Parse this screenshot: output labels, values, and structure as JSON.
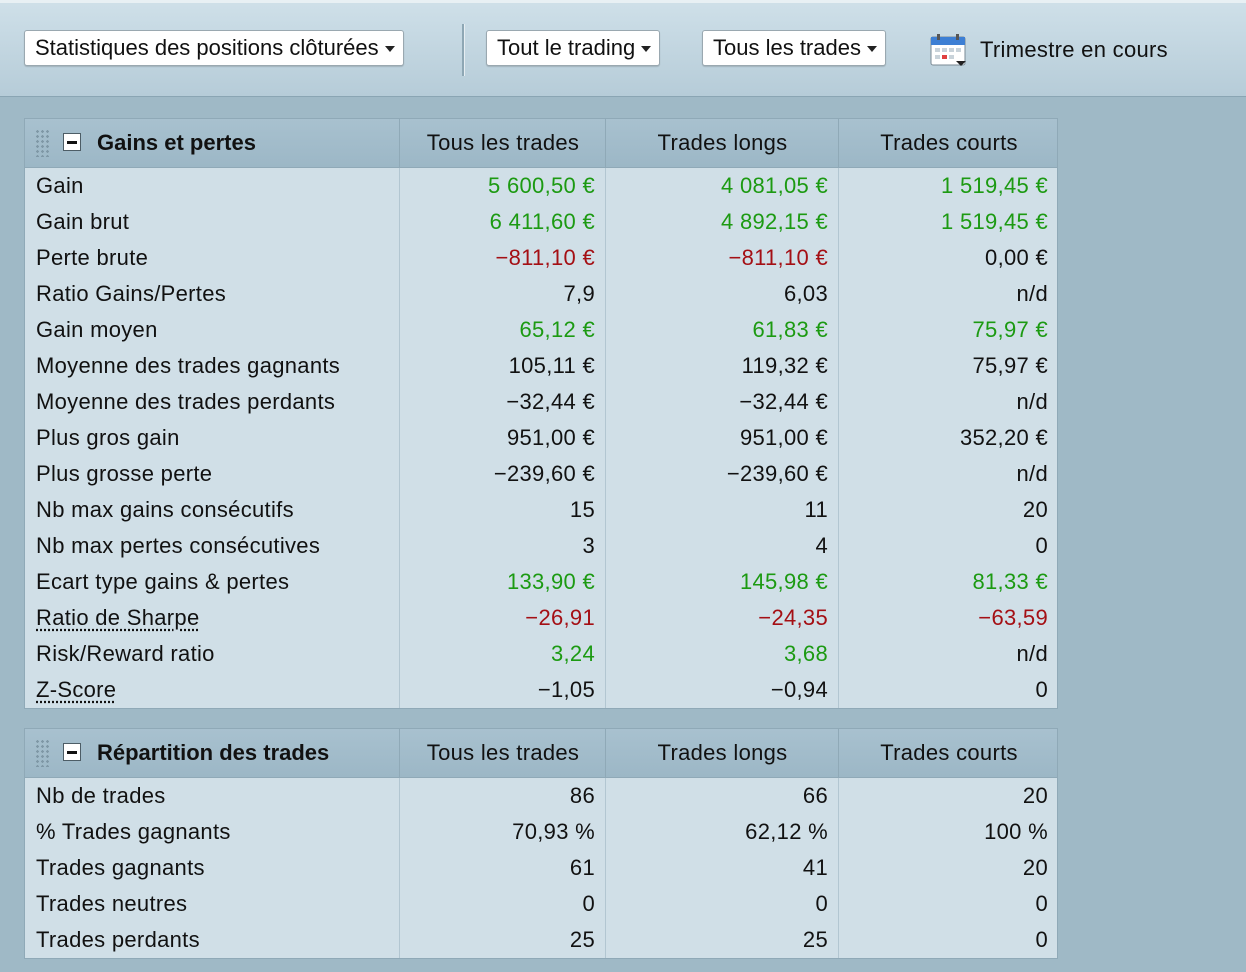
{
  "toolbar": {
    "view_select": "Statistiques des positions clôturées",
    "scope_select": "Tout le trading",
    "trades_select": "Tous les trades",
    "calendar_icon": "calendar-icon",
    "period_label": "Trimestre en cours"
  },
  "colors": {
    "positive": "#1c9a12",
    "negative": "#a40f14",
    "panel_bg": "#d0dfe7",
    "header_bg": "#a8c1cf"
  },
  "gains_panel": {
    "title": "Gains et pertes",
    "columns": [
      "Tous les trades",
      "Trades longs",
      "Trades courts"
    ],
    "rows": [
      {
        "label": "Gain",
        "values": [
          "5 600,50 €",
          "4 081,05 €",
          "1 519,45 €"
        ],
        "colors": [
          "green",
          "green",
          "green"
        ]
      },
      {
        "label": "Gain brut",
        "values": [
          "6 411,60 €",
          "4 892,15 €",
          "1 519,45 €"
        ],
        "colors": [
          "green",
          "green",
          "green"
        ]
      },
      {
        "label": "Perte brute",
        "values": [
          "−811,10 €",
          "−811,10 €",
          "0,00 €"
        ],
        "colors": [
          "red",
          "red",
          ""
        ]
      },
      {
        "label": "Ratio Gains/Pertes",
        "values": [
          "7,9",
          "6,03",
          "n/d"
        ],
        "colors": [
          "",
          "",
          ""
        ]
      },
      {
        "label": "Gain moyen",
        "values": [
          "65,12 €",
          "61,83 €",
          "75,97 €"
        ],
        "colors": [
          "green",
          "green",
          "green"
        ]
      },
      {
        "label": "Moyenne des trades gagnants",
        "values": [
          "105,11 €",
          "119,32 €",
          "75,97 €"
        ],
        "colors": [
          "",
          "",
          ""
        ]
      },
      {
        "label": "Moyenne des trades perdants",
        "values": [
          "−32,44 €",
          "−32,44 €",
          "n/d"
        ],
        "colors": [
          "",
          "",
          ""
        ]
      },
      {
        "label": "Plus gros gain",
        "values": [
          "951,00 €",
          "951,00 €",
          "352,20 €"
        ],
        "colors": [
          "",
          "",
          ""
        ]
      },
      {
        "label": "Plus grosse perte",
        "values": [
          "−239,60 €",
          "−239,60 €",
          "n/d"
        ],
        "colors": [
          "",
          "",
          ""
        ]
      },
      {
        "label": "Nb max gains consécutifs",
        "values": [
          "15",
          "11",
          "20"
        ],
        "colors": [
          "",
          "",
          ""
        ]
      },
      {
        "label": "Nb max pertes consécutives",
        "values": [
          "3",
          "4",
          "0"
        ],
        "colors": [
          "",
          "",
          ""
        ]
      },
      {
        "label": "Ecart type gains & pertes",
        "values": [
          "133,90 €",
          "145,98 €",
          "81,33 €"
        ],
        "colors": [
          "green",
          "green",
          "green"
        ]
      },
      {
        "label": "Ratio de Sharpe",
        "values": [
          "−26,91",
          "−24,35",
          "−63,59"
        ],
        "colors": [
          "red",
          "red",
          "red"
        ],
        "link": true
      },
      {
        "label": "Risk/Reward ratio",
        "values": [
          "3,24",
          "3,68",
          "n/d"
        ],
        "colors": [
          "green",
          "green",
          ""
        ]
      },
      {
        "label": "Z-Score",
        "values": [
          "−1,05",
          "−0,94",
          "0"
        ],
        "colors": [
          "",
          "",
          ""
        ],
        "link": true
      }
    ]
  },
  "distribution_panel": {
    "title": "Répartition des trades",
    "columns": [
      "Tous les trades",
      "Trades longs",
      "Trades courts"
    ],
    "rows": [
      {
        "label": "Nb de trades",
        "values": [
          "86",
          "66",
          "20"
        ],
        "colors": [
          "",
          "",
          ""
        ]
      },
      {
        "label": "% Trades gagnants",
        "values": [
          "70,93 %",
          "62,12 %",
          "100 %"
        ],
        "colors": [
          "",
          "",
          ""
        ]
      },
      {
        "label": "Trades gagnants",
        "values": [
          "61",
          "41",
          "20"
        ],
        "colors": [
          "",
          "",
          ""
        ]
      },
      {
        "label": "Trades neutres",
        "values": [
          "0",
          "0",
          "0"
        ],
        "colors": [
          "",
          "",
          ""
        ]
      },
      {
        "label": "Trades perdants",
        "values": [
          "25",
          "25",
          "0"
        ],
        "colors": [
          "",
          "",
          ""
        ]
      }
    ]
  }
}
